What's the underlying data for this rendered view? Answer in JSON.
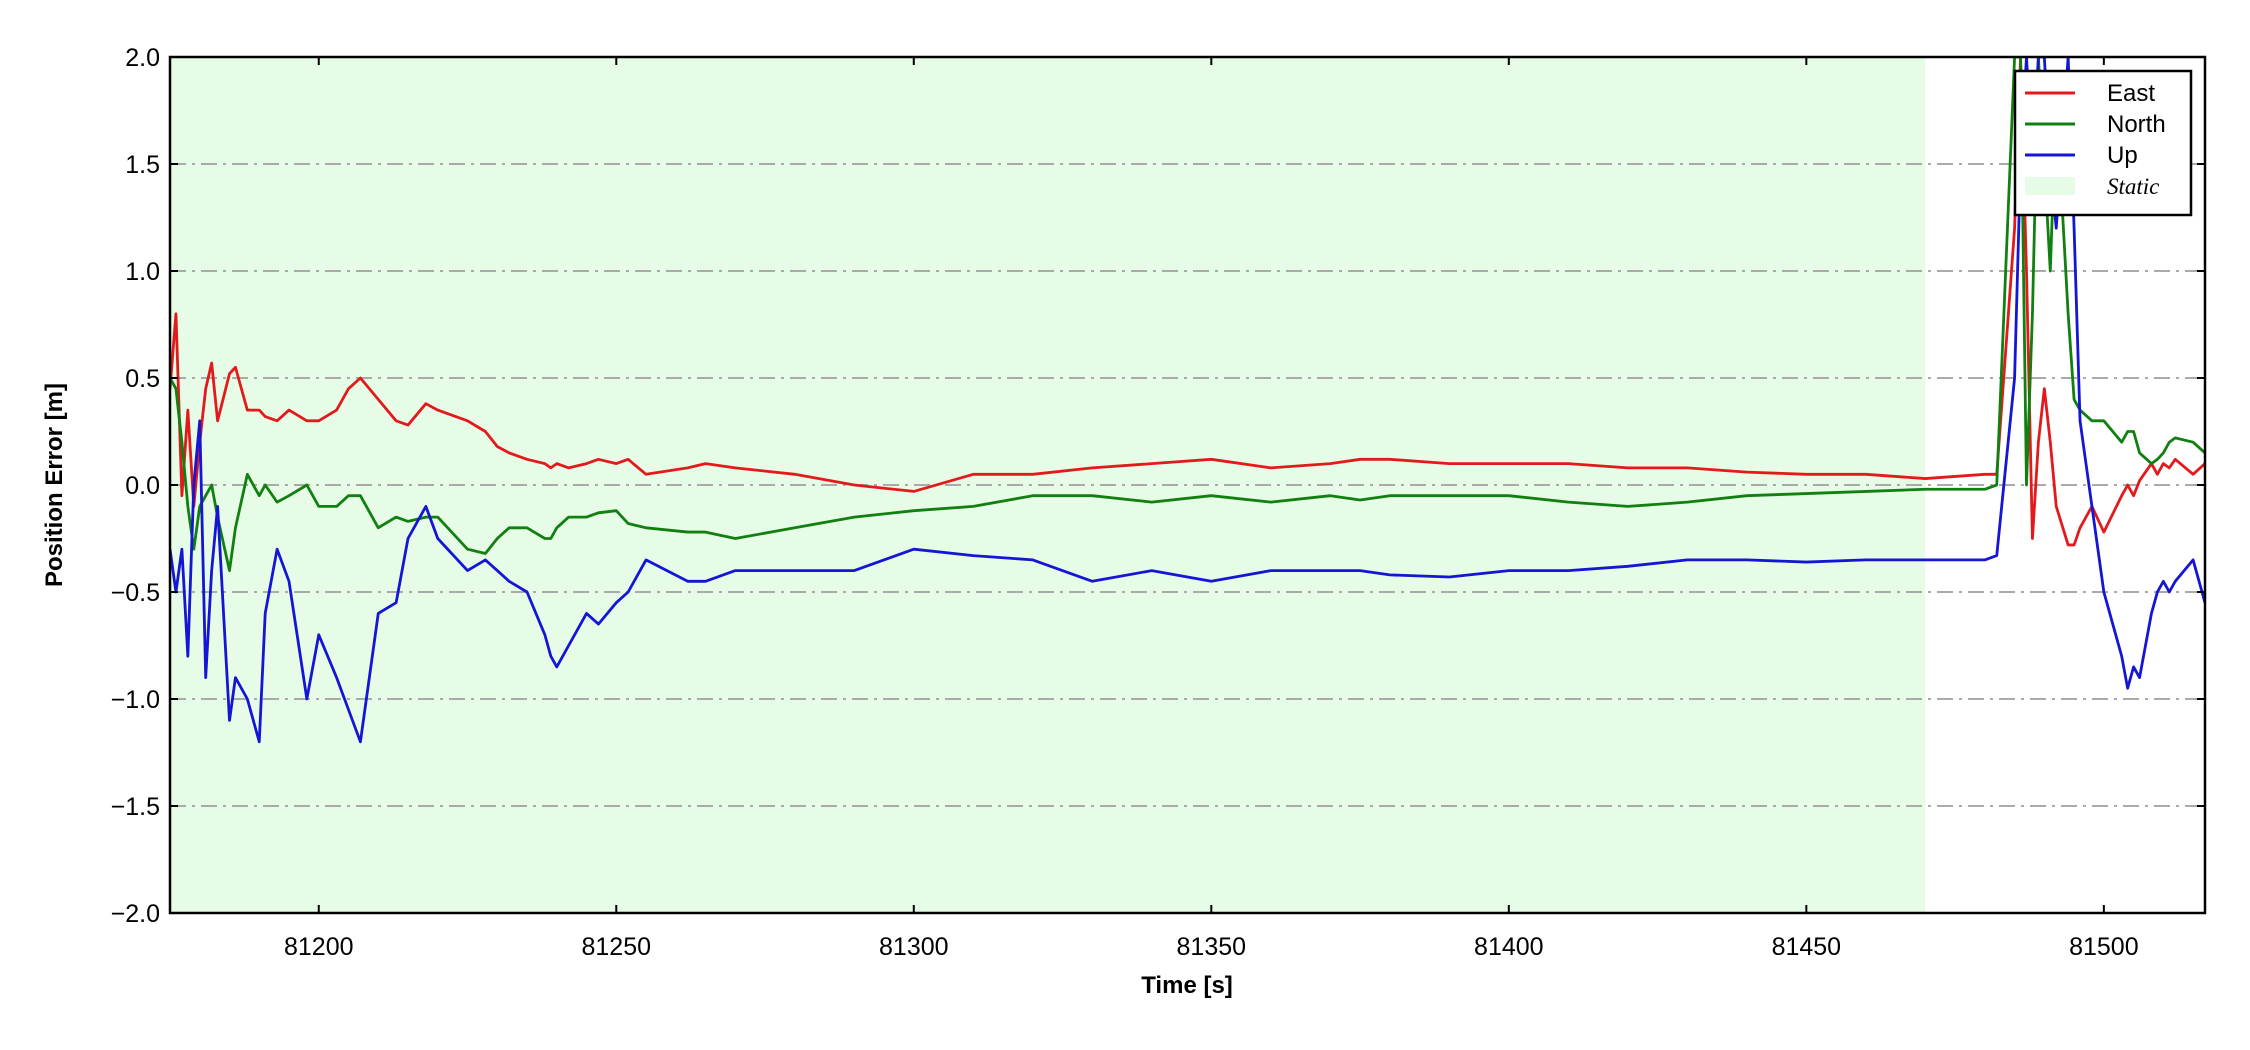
{
  "chart_data": {
    "type": "line",
    "x_label": "Time [s]",
    "y_label": "Position Error [m]",
    "xlim": [
      81175,
      81517
    ],
    "ylim": [
      -2,
      2
    ],
    "xticks": [
      81200,
      81250,
      81300,
      81350,
      81400,
      81450,
      81500
    ],
    "yticks": [
      {
        "value": -2,
        "label": "−2.0"
      },
      {
        "value": -1.5,
        "label": "−1.5"
      },
      {
        "value": -1,
        "label": "−1.0"
      },
      {
        "value": -0.5,
        "label": "−0.5"
      },
      {
        "value": 0,
        "label": "0.0"
      },
      0.5,
      {
        "value": 1,
        "label": "1.0"
      },
      1.5,
      {
        "value": 2,
        "label": "2.0"
      }
    ],
    "grid": true,
    "legend": "upper right",
    "shaded": {
      "name": "Static",
      "color": "#e6fce6",
      "range": [
        81175,
        81470
      ]
    },
    "x": [
      81175,
      81176,
      81177,
      81178,
      81179,
      81180,
      81181,
      81182,
      81183,
      81185,
      81186,
      81188,
      81190,
      81191,
      81193,
      81195,
      81198,
      81200,
      81203,
      81205,
      81207,
      81210,
      81213,
      81215,
      81218,
      81220,
      81225,
      81228,
      81230,
      81232,
      81235,
      81238,
      81239,
      81240,
      81242,
      81245,
      81247,
      81250,
      81252,
      81255,
      81262,
      81265,
      81270,
      81280,
      81290,
      81300,
      81310,
      81320,
      81330,
      81340,
      81350,
      81360,
      81370,
      81375,
      81380,
      81390,
      81400,
      81410,
      81420,
      81430,
      81440,
      81450,
      81460,
      81470,
      81480,
      81482,
      81485,
      81486,
      81487,
      81488,
      81489,
      81490,
      81491,
      81492,
      81494,
      81495,
      81496,
      81498,
      81500,
      81503,
      81504,
      81505,
      81506,
      81508,
      81509,
      81510,
      81511,
      81512,
      81515,
      81517
    ],
    "series": [
      {
        "name": "East",
        "color": "#e31a1c",
        "values": [
          0.45,
          0.8,
          -0.05,
          0.35,
          -0.1,
          0.2,
          0.45,
          0.57,
          0.3,
          0.52,
          0.55,
          0.35,
          0.35,
          0.32,
          0.3,
          0.35,
          0.3,
          0.3,
          0.35,
          0.45,
          0.5,
          0.4,
          0.3,
          0.28,
          0.38,
          0.35,
          0.3,
          0.25,
          0.18,
          0.15,
          0.12,
          0.1,
          0.08,
          0.1,
          0.08,
          0.1,
          0.12,
          0.1,
          0.12,
          0.05,
          0.08,
          0.1,
          0.08,
          0.05,
          0,
          -0.03,
          0.05,
          0.05,
          0.08,
          0.1,
          0.12,
          0.08,
          0.1,
          0.12,
          0.12,
          0.1,
          0.1,
          0.1,
          0.08,
          0.08,
          0.06,
          0.05,
          0.05,
          0.03,
          0.05,
          0.05,
          1.2,
          2,
          1,
          -0.25,
          0.2,
          0.45,
          0.2,
          -0.1,
          -0.28,
          -0.28,
          -0.2,
          -0.1,
          -0.22,
          -0.05,
          0,
          -0.05,
          0.02,
          0.1,
          0.05,
          0.1,
          0.08,
          0.12,
          0.05,
          0.1
        ]
      },
      {
        "name": "North",
        "color": "#118011",
        "values": [
          0.5,
          0.45,
          0.2,
          -0.1,
          -0.3,
          -0.1,
          -0.05,
          0,
          -0.15,
          -0.4,
          -0.2,
          0.05,
          -0.05,
          0,
          -0.08,
          -0.05,
          0,
          -0.1,
          -0.1,
          -0.05,
          -0.05,
          -0.2,
          -0.15,
          -0.17,
          -0.15,
          -0.15,
          -0.3,
          -0.32,
          -0.25,
          -0.2,
          -0.2,
          -0.25,
          -0.25,
          -0.2,
          -0.15,
          -0.15,
          -0.13,
          -0.12,
          -0.18,
          -0.2,
          -0.22,
          -0.22,
          -0.25,
          -0.2,
          -0.15,
          -0.12,
          -0.1,
          -0.05,
          -0.05,
          -0.08,
          -0.05,
          -0.08,
          -0.05,
          -0.07,
          -0.05,
          -0.05,
          -0.05,
          -0.08,
          -0.1,
          -0.08,
          -0.05,
          -0.04,
          -0.03,
          -0.02,
          -0.02,
          0,
          2,
          2,
          0,
          0.8,
          2,
          1.5,
          1,
          1.8,
          0.8,
          0.4,
          0.35,
          0.3,
          0.3,
          0.2,
          0.25,
          0.25,
          0.15,
          0.1,
          0.12,
          0.15,
          0.2,
          0.22,
          0.2,
          0.15
        ]
      },
      {
        "name": "Up",
        "color": "#1515d6",
        "values": [
          -0.3,
          -0.5,
          -0.3,
          -0.8,
          0,
          0.3,
          -0.9,
          -0.4,
          -0.1,
          -1.1,
          -0.9,
          -1,
          -1.2,
          -0.6,
          -0.3,
          -0.45,
          -1,
          -0.7,
          -0.9,
          -1.05,
          -1.2,
          -0.6,
          -0.55,
          -0.25,
          -0.1,
          -0.25,
          -0.4,
          -0.35,
          -0.4,
          -0.45,
          -0.5,
          -0.7,
          -0.8,
          -0.85,
          -0.75,
          -0.6,
          -0.65,
          -0.55,
          -0.5,
          -0.35,
          -0.45,
          -0.45,
          -0.4,
          -0.4,
          -0.4,
          -0.3,
          -0.33,
          -0.35,
          -0.45,
          -0.4,
          -0.45,
          -0.4,
          -0.4,
          -0.4,
          -0.42,
          -0.43,
          -0.4,
          -0.4,
          -0.38,
          -0.35,
          -0.35,
          -0.36,
          -0.35,
          -0.35,
          -0.35,
          -0.33,
          0.5,
          1.5,
          2,
          1.5,
          2,
          2,
          1.5,
          1.2,
          2,
          1.2,
          0.3,
          -0.1,
          -0.5,
          -0.8,
          -0.95,
          -0.85,
          -0.9,
          -0.6,
          -0.5,
          -0.45,
          -0.5,
          -0.45,
          -0.35,
          -0.55
        ]
      }
    ]
  }
}
